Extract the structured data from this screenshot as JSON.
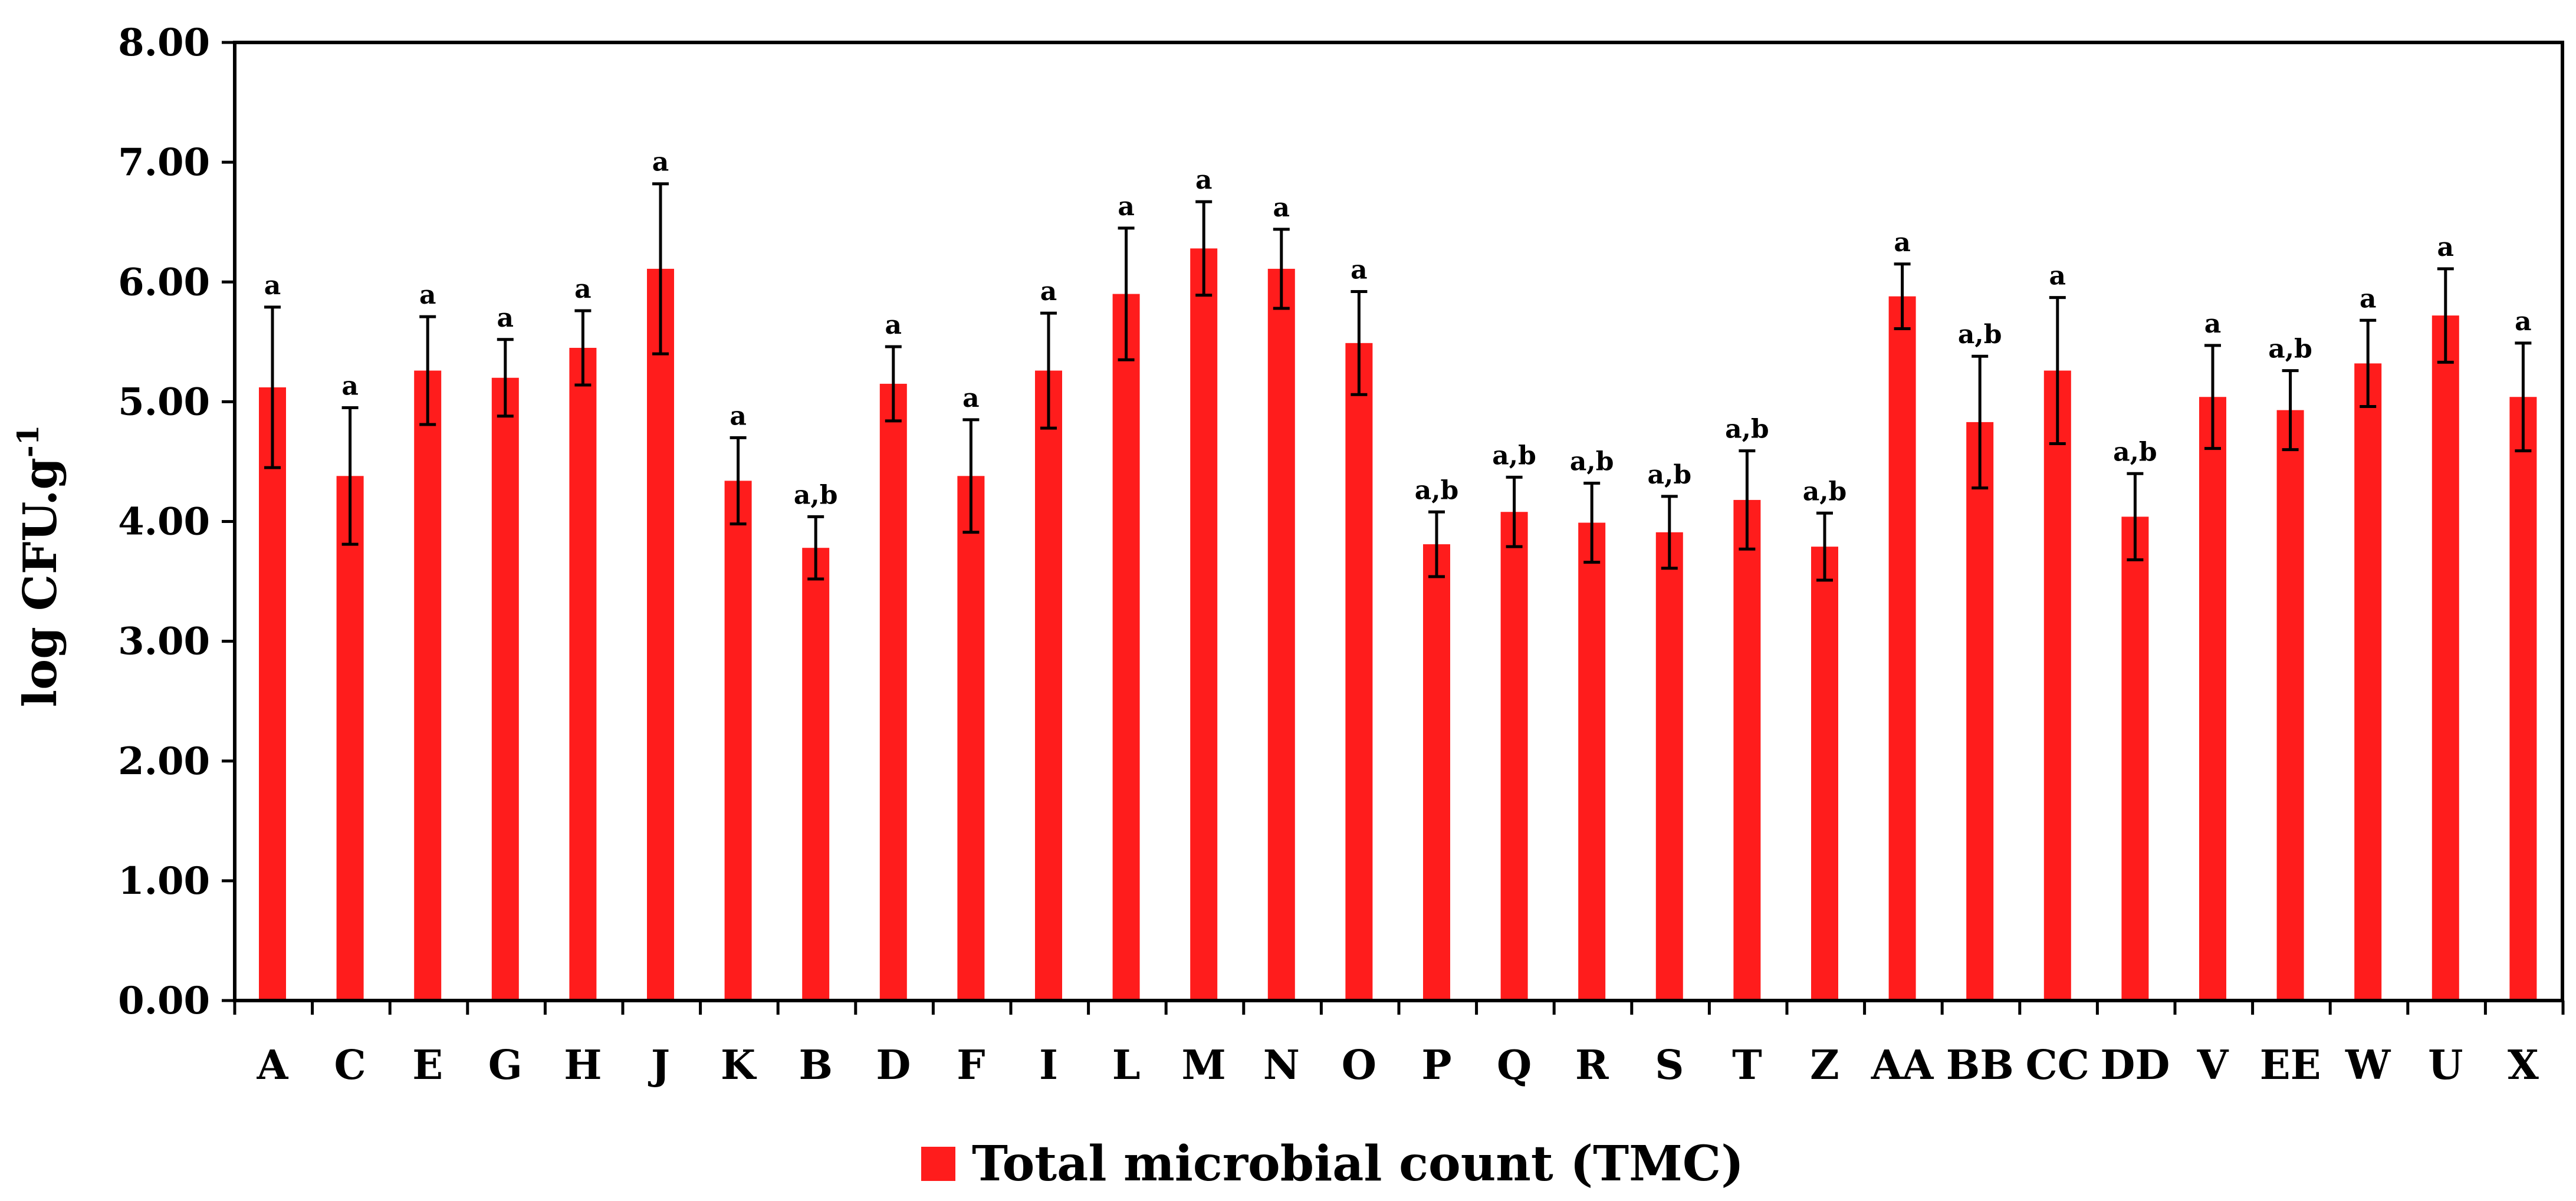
{
  "chart_data": {
    "type": "bar",
    "title": "",
    "xlabel": "",
    "ylabel": "log CFU.g",
    "ylabel_superscript": "-1",
    "ylim": [
      0,
      8
    ],
    "yticks": [
      "0.00",
      "1.00",
      "2.00",
      "3.00",
      "4.00",
      "5.00",
      "6.00",
      "7.00",
      "8.00"
    ],
    "grid": false,
    "legend": {
      "position": "bottom-center",
      "entries": [
        "Total microbial count (TMC)"
      ]
    },
    "bar_color": "#ff1c1c",
    "categories": [
      "A",
      "C",
      "E",
      "G",
      "H",
      "J",
      "K",
      "B",
      "D",
      "F",
      "I",
      "L",
      "M",
      "N",
      "O",
      "P",
      "Q",
      "R",
      "S",
      "T",
      "Z",
      "AA",
      "BB",
      "CC",
      "DD",
      "V",
      "EE",
      "W",
      "U",
      "X"
    ],
    "series": [
      {
        "name": "Total microbial count (TMC)",
        "values": [
          5.12,
          4.38,
          5.26,
          5.2,
          5.45,
          6.11,
          4.34,
          3.78,
          5.15,
          4.38,
          5.26,
          5.9,
          6.28,
          6.11,
          5.49,
          3.81,
          4.08,
          3.99,
          3.91,
          4.18,
          3.79,
          5.88,
          4.83,
          5.26,
          4.04,
          5.04,
          4.93,
          5.32,
          5.72,
          5.04
        ],
        "errors": [
          0.67,
          0.57,
          0.45,
          0.32,
          0.31,
          0.71,
          0.36,
          0.26,
          0.31,
          0.47,
          0.48,
          0.55,
          0.39,
          0.33,
          0.43,
          0.27,
          0.29,
          0.33,
          0.3,
          0.41,
          0.28,
          0.27,
          0.55,
          0.61,
          0.36,
          0.43,
          0.33,
          0.36,
          0.39,
          0.45
        ],
        "significance": [
          "a",
          "a",
          "a",
          "a",
          "a",
          "a",
          "a",
          "a,b",
          "a",
          "a",
          "a",
          "a",
          "a",
          "a",
          "a",
          "a,b",
          "a,b",
          "a,b",
          "a,b",
          "a,b",
          "a,b",
          "a",
          "a,b",
          "a",
          "a,b",
          "a",
          "a,b",
          "a",
          "a",
          "a"
        ]
      }
    ]
  }
}
